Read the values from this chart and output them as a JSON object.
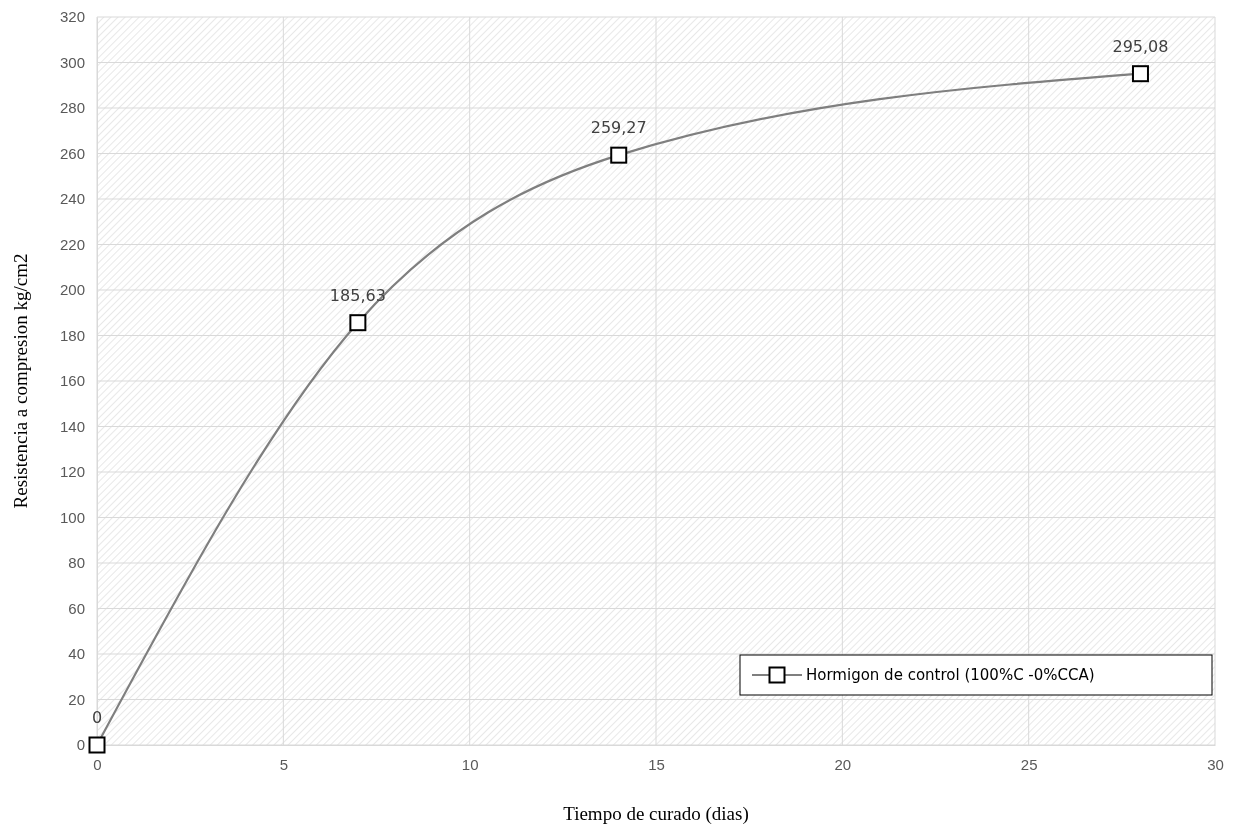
{
  "chart_data": {
    "type": "line",
    "xlabel": "Tiempo de curado (dias)",
    "ylabel": "Resistencia a compresion kg/cm2",
    "x": [
      0,
      7,
      14,
      28
    ],
    "series": [
      {
        "name": "Hormigon de control (100%C -0%CCA)",
        "color": "#7f7f7f",
        "values": [
          0,
          185.63,
          259.27,
          295.08
        ],
        "value_labels": [
          "0",
          "185,63",
          "259,27",
          "295,08"
        ]
      }
    ],
    "xlim": [
      0,
      30
    ],
    "xticks": [
      0,
      5,
      10,
      15,
      20,
      25,
      30
    ],
    "ylim": [
      0,
      320
    ],
    "yticks": [
      0,
      20,
      40,
      60,
      80,
      100,
      120,
      140,
      160,
      180,
      200,
      220,
      240,
      260,
      280,
      300,
      320
    ],
    "grid": true,
    "legend": "bottom right",
    "marker": "square",
    "line_style": "solid"
  }
}
